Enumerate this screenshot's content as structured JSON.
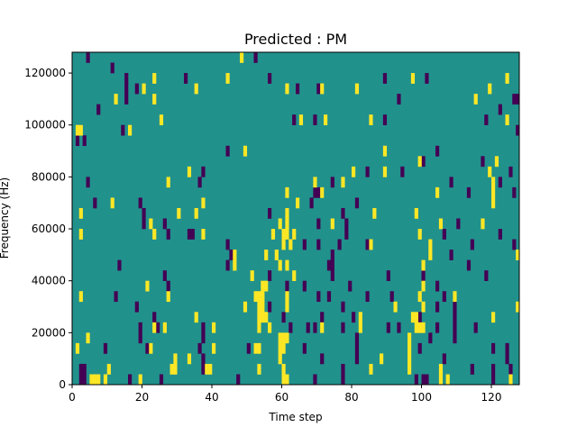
{
  "chart_data": {
    "type": "heatmap",
    "title": "Predicted : PM",
    "xlabel": "Time step",
    "ylabel": "Frequency (Hz)",
    "xlim": [
      0,
      128
    ],
    "ylim": [
      0,
      128000
    ],
    "n_time": 128,
    "n_freq_bins": 32,
    "bin_hz": 4000,
    "xticks": [
      0,
      20,
      40,
      60,
      80,
      100,
      120
    ],
    "yticks": [
      0,
      20000,
      40000,
      60000,
      80000,
      100000,
      120000
    ],
    "ytick_labels": [
      "0",
      "20000",
      "40000",
      "60000",
      "80000",
      "100000",
      "120000"
    ],
    "colors": {
      "low": "#440154",
      "mid": "#21918c",
      "high": "#fde725"
    },
    "background_value": "mid",
    "low_cells": [
      [
        4,
        31
      ],
      [
        52,
        31
      ],
      [
        11,
        30
      ],
      [
        15,
        29
      ],
      [
        32,
        29
      ],
      [
        56,
        29
      ],
      [
        89,
        29
      ],
      [
        101,
        29
      ],
      [
        15,
        28
      ],
      [
        18,
        28
      ],
      [
        64,
        28
      ],
      [
        70,
        28
      ],
      [
        15,
        27
      ],
      [
        93,
        27
      ],
      [
        126,
        27
      ],
      [
        127,
        27
      ],
      [
        7,
        26
      ],
      [
        122,
        26
      ],
      [
        63,
        25
      ],
      [
        69,
        25
      ],
      [
        89,
        25
      ],
      [
        118,
        25
      ],
      [
        14,
        24
      ],
      [
        127,
        24
      ],
      [
        1,
        23
      ],
      [
        3,
        23
      ],
      [
        44,
        22
      ],
      [
        104,
        22
      ],
      [
        100,
        21
      ],
      [
        117,
        21
      ],
      [
        37,
        20
      ],
      [
        84,
        20
      ],
      [
        94,
        20
      ],
      [
        125,
        20
      ],
      [
        4,
        19
      ],
      [
        36,
        19
      ],
      [
        74,
        19
      ],
      [
        108,
        19
      ],
      [
        122,
        19
      ],
      [
        69,
        18
      ],
      [
        70,
        18
      ],
      [
        113,
        18
      ],
      [
        126,
        18
      ],
      [
        6,
        17
      ],
      [
        19,
        17
      ],
      [
        68,
        17
      ],
      [
        81,
        17
      ],
      [
        20,
        16
      ],
      [
        56,
        16
      ],
      [
        77,
        16
      ],
      [
        20,
        15
      ],
      [
        26,
        15
      ],
      [
        70,
        15
      ],
      [
        78,
        15
      ],
      [
        110,
        15
      ],
      [
        27,
        14
      ],
      [
        33,
        14
      ],
      [
        34,
        14
      ],
      [
        78,
        14
      ],
      [
        106,
        14
      ],
      [
        122,
        14
      ],
      [
        44,
        13
      ],
      [
        66,
        13
      ],
      [
        70,
        13
      ],
      [
        76,
        13
      ],
      [
        84,
        13
      ],
      [
        114,
        13
      ],
      [
        126,
        13
      ],
      [
        45,
        12
      ],
      [
        74,
        12
      ],
      [
        108,
        12
      ],
      [
        13,
        11
      ],
      [
        44,
        11
      ],
      [
        73,
        11
      ],
      [
        74,
        11
      ],
      [
        113,
        11
      ],
      [
        26,
        10
      ],
      [
        56,
        10
      ],
      [
        74,
        10
      ],
      [
        90,
        10
      ],
      [
        100,
        10
      ],
      [
        118,
        10
      ],
      [
        27,
        9
      ],
      [
        61,
        9
      ],
      [
        66,
        9
      ],
      [
        79,
        9
      ],
      [
        104,
        9
      ],
      [
        12,
        8
      ],
      [
        70,
        8
      ],
      [
        73,
        8
      ],
      [
        84,
        8
      ],
      [
        91,
        8
      ],
      [
        106,
        8
      ],
      [
        18,
        7
      ],
      [
        56,
        7
      ],
      [
        77,
        7
      ],
      [
        104,
        7
      ],
      [
        109,
        7
      ],
      [
        23,
        6
      ],
      [
        60,
        6
      ],
      [
        71,
        6
      ],
      [
        80,
        6
      ],
      [
        99,
        6
      ],
      [
        109,
        6
      ],
      [
        19,
        5
      ],
      [
        24,
        5
      ],
      [
        37,
        5
      ],
      [
        62,
        5
      ],
      [
        67,
        5
      ],
      [
        69,
        5
      ],
      [
        77,
        5
      ],
      [
        90,
        5
      ],
      [
        93,
        5
      ],
      [
        104,
        5
      ],
      [
        109,
        5
      ],
      [
        115,
        5
      ],
      [
        19,
        4
      ],
      [
        37,
        4
      ],
      [
        81,
        4
      ],
      [
        102,
        4
      ],
      [
        109,
        4
      ],
      [
        9,
        3
      ],
      [
        21,
        3
      ],
      [
        36,
        3
      ],
      [
        50,
        3
      ],
      [
        66,
        3
      ],
      [
        81,
        3
      ],
      [
        99,
        3
      ],
      [
        120,
        3
      ],
      [
        124,
        3
      ],
      [
        37,
        2
      ],
      [
        71,
        2
      ],
      [
        81,
        2
      ],
      [
        106,
        2
      ],
      [
        124,
        2
      ],
      [
        2,
        1
      ],
      [
        3,
        1
      ],
      [
        37,
        1
      ],
      [
        77,
        1
      ],
      [
        114,
        1
      ],
      [
        120,
        1
      ],
      [
        125,
        1
      ],
      [
        2,
        0
      ],
      [
        3,
        0
      ],
      [
        16,
        0
      ],
      [
        25,
        0
      ],
      [
        47,
        0
      ],
      [
        69,
        0
      ],
      [
        77,
        0
      ],
      [
        98,
        0
      ],
      [
        100,
        0
      ],
      [
        101,
        0
      ],
      [
        120,
        0
      ]
    ],
    "high_cells": [
      [
        48,
        31
      ],
      [
        23,
        29
      ],
      [
        44,
        29
      ],
      [
        97,
        29
      ],
      [
        124,
        29
      ],
      [
        20,
        28
      ],
      [
        35,
        28
      ],
      [
        61,
        28
      ],
      [
        71,
        28
      ],
      [
        81,
        28
      ],
      [
        119,
        28
      ],
      [
        12,
        27
      ],
      [
        23,
        27
      ],
      [
        115,
        27
      ],
      [
        25,
        25
      ],
      [
        65,
        25
      ],
      [
        72,
        25
      ],
      [
        85,
        25
      ],
      [
        124,
        25
      ],
      [
        1,
        24
      ],
      [
        2,
        24
      ],
      [
        16,
        24
      ],
      [
        49,
        22
      ],
      [
        89,
        22
      ],
      [
        99,
        21
      ],
      [
        121,
        21
      ],
      [
        33,
        20
      ],
      [
        80,
        20
      ],
      [
        89,
        20
      ],
      [
        119,
        20
      ],
      [
        27,
        19
      ],
      [
        69,
        19
      ],
      [
        77,
        19
      ],
      [
        120,
        19
      ],
      [
        61,
        18
      ],
      [
        71,
        18
      ],
      [
        104,
        18
      ],
      [
        120,
        18
      ],
      [
        11,
        17
      ],
      [
        37,
        17
      ],
      [
        64,
        17
      ],
      [
        120,
        17
      ],
      [
        2,
        16
      ],
      [
        30,
        16
      ],
      [
        35,
        16
      ],
      [
        61,
        16
      ],
      [
        86,
        16
      ],
      [
        98,
        16
      ],
      [
        22,
        15
      ],
      [
        59,
        15
      ],
      [
        61,
        15
      ],
      [
        74,
        15
      ],
      [
        105,
        15
      ],
      [
        117,
        15
      ],
      [
        2,
        14
      ],
      [
        23,
        14
      ],
      [
        37,
        14
      ],
      [
        57,
        14
      ],
      [
        60,
        14
      ],
      [
        61,
        14
      ],
      [
        63,
        14
      ],
      [
        99,
        14
      ],
      [
        60,
        13
      ],
      [
        62,
        13
      ],
      [
        85,
        13
      ],
      [
        102,
        13
      ],
      [
        46,
        12
      ],
      [
        55,
        12
      ],
      [
        58,
        12
      ],
      [
        102,
        12
      ],
      [
        127,
        12
      ],
      [
        46,
        11
      ],
      [
        59,
        11
      ],
      [
        61,
        11
      ],
      [
        100,
        11
      ],
      [
        51,
        10
      ],
      [
        63,
        10
      ],
      [
        21,
        9
      ],
      [
        54,
        9
      ],
      [
        55,
        9
      ],
      [
        100,
        9
      ],
      [
        2,
        8
      ],
      [
        27,
        8
      ],
      [
        52,
        8
      ],
      [
        53,
        8
      ],
      [
        54,
        8
      ],
      [
        61,
        8
      ],
      [
        99,
        8
      ],
      [
        109,
        8
      ],
      [
        49,
        7
      ],
      [
        53,
        7
      ],
      [
        54,
        7
      ],
      [
        61,
        7
      ],
      [
        92,
        7
      ],
      [
        100,
        7
      ],
      [
        127,
        7
      ],
      [
        35,
        6
      ],
      [
        53,
        6
      ],
      [
        54,
        6
      ],
      [
        55,
        6
      ],
      [
        82,
        6
      ],
      [
        97,
        6
      ],
      [
        98,
        6
      ],
      [
        120,
        6
      ],
      [
        23,
        5
      ],
      [
        26,
        5
      ],
      [
        40,
        5
      ],
      [
        53,
        5
      ],
      [
        56,
        5
      ],
      [
        71,
        5
      ],
      [
        82,
        5
      ],
      [
        98,
        5
      ],
      [
        99,
        5
      ],
      [
        100,
        5
      ],
      [
        4,
        4
      ],
      [
        59,
        4
      ],
      [
        60,
        4
      ],
      [
        61,
        4
      ],
      [
        96,
        4
      ],
      [
        1,
        3
      ],
      [
        22,
        3
      ],
      [
        40,
        3
      ],
      [
        52,
        3
      ],
      [
        53,
        3
      ],
      [
        59,
        3
      ],
      [
        60,
        3
      ],
      [
        96,
        3
      ],
      [
        29,
        2
      ],
      [
        33,
        2
      ],
      [
        59,
        2
      ],
      [
        88,
        2
      ],
      [
        96,
        2
      ],
      [
        10,
        1
      ],
      [
        28,
        1
      ],
      [
        29,
        1
      ],
      [
        38,
        1
      ],
      [
        39,
        1
      ],
      [
        53,
        1
      ],
      [
        60,
        1
      ],
      [
        85,
        1
      ],
      [
        96,
        1
      ],
      [
        105,
        1
      ],
      [
        5,
        0
      ],
      [
        6,
        0
      ],
      [
        7,
        0
      ],
      [
        9,
        0
      ],
      [
        19,
        0
      ],
      [
        60,
        0
      ],
      [
        61,
        0
      ],
      [
        105,
        0
      ],
      [
        107,
        0
      ],
      [
        125,
        0
      ]
    ]
  }
}
